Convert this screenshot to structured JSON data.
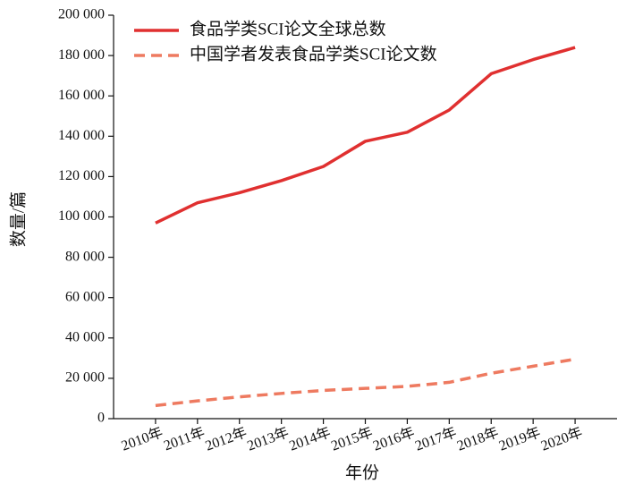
{
  "chart_data": {
    "type": "line",
    "categories": [
      "2010年",
      "2011年",
      "2012年",
      "2013年",
      "2014年",
      "2015年",
      "2016年",
      "2017年",
      "2018年",
      "2019年",
      "2020年"
    ],
    "series": [
      {
        "name": "食品学类SCI论文全球总数",
        "color": "#e03030",
        "dash": false,
        "values": [
          97000,
          107000,
          112000,
          118000,
          125000,
          137500,
          142000,
          153000,
          171000,
          178000,
          184000
        ]
      },
      {
        "name": "中国学者发表食品学类SCI论文数",
        "color": "#ee7a60",
        "dash": true,
        "values": [
          6500,
          8800,
          10800,
          12500,
          14000,
          15000,
          16000,
          18000,
          22500,
          26000,
          29500
        ]
      }
    ],
    "xlabel": "年份",
    "ylabel": "数量/篇",
    "ylim": [
      0,
      200000
    ],
    "yticks": [
      0,
      {
        "value": 20000,
        "label": "20 000"
      },
      {
        "value": 40000,
        "label": "40 000"
      },
      {
        "value": 60000,
        "label": "60 000"
      },
      {
        "value": 80000,
        "label": "80 000"
      },
      {
        "value": 100000,
        "label": "100 000"
      },
      {
        "value": 120000,
        "label": "120 000"
      },
      {
        "value": 140000,
        "label": "140 000"
      },
      {
        "value": 160000,
        "label": "160 000"
      },
      {
        "value": 180000,
        "label": "180 000"
      },
      {
        "value": 200000,
        "label": "200 000"
      }
    ],
    "legend": "upper left",
    "grid": false
  }
}
